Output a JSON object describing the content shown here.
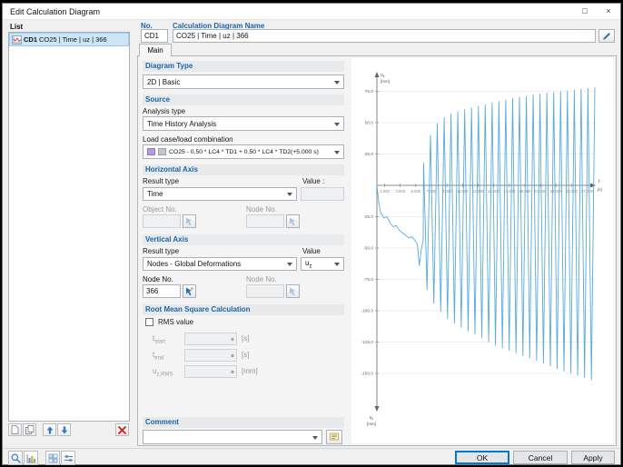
{
  "colors": {
    "accent": "#0078d7",
    "section_header": "#1a66a8",
    "chart_line": "#58a9dc",
    "selection": "#cde6f7",
    "delete": "#d01c1c"
  },
  "window": {
    "title": "Edit Calculation Diagram",
    "maximize_glyph": "□",
    "close_glyph": "×"
  },
  "list_panel": {
    "label": "List",
    "items": [
      {
        "no": "CD1",
        "name": "CO25 | Time | uz | 366"
      }
    ]
  },
  "header": {
    "no_label": "No.",
    "no_value": "CD1",
    "name_label": "Calculation Diagram Name",
    "name_value": "CO25 | Time | uz | 366"
  },
  "tabs": [
    {
      "label": "Main"
    }
  ],
  "sections": {
    "diagram_type": {
      "title": "Diagram Type",
      "value": "2D | Basic"
    },
    "source": {
      "title": "Source",
      "analysis_type_label": "Analysis type",
      "analysis_type_value": "Time History Analysis",
      "load_case_label": "Load case/load combination",
      "load_case_value": "CO25 - 0.50 * LC4 * TD1 + 0.50 * LC4 * TD2(+5.000 s)"
    },
    "horizontal_axis": {
      "title": "Horizontal Axis",
      "result_type_label": "Result type",
      "result_type_value": "Time",
      "value_label": "Value :",
      "value_value": "",
      "object_no_label": "Object No.",
      "object_no_value": "",
      "node_no_label": "Node No.",
      "node_no_value": ""
    },
    "vertical_axis": {
      "title": "Vertical Axis",
      "result_type_label": "Result type",
      "result_type_value": "Nodes - Global Deformations",
      "value_label": "Value",
      "value_base": "u",
      "value_sub": "z",
      "node_no_label": "Node No.",
      "node_no_value": "366",
      "node_no2_label": "Node No.",
      "node_no2_value": ""
    },
    "rms": {
      "title": "Root Mean Square Calculation",
      "checkbox_label": "RMS value",
      "checked": false,
      "rows": [
        {
          "base": "t",
          "sub": "start",
          "value": "",
          "unit": "[s]"
        },
        {
          "base": "t",
          "sub": "end",
          "value": "",
          "unit": "[s]"
        },
        {
          "base": "u",
          "sub": "z,RMS",
          "value": "",
          "unit": "[mm]"
        }
      ]
    },
    "comment": {
      "title": "Comment",
      "value": ""
    }
  },
  "footer": {
    "ok": "OK",
    "cancel": "Cancel",
    "apply": "Apply"
  },
  "chart_data": {
    "type": "line",
    "xlabel": "t",
    "xunit": "[s]",
    "ylabel_base": "u",
    "ylabel_sub": "z",
    "yunit": "[mm]",
    "xlim": [
      0,
      28
    ],
    "ylim": [
      -160,
      85
    ],
    "grid": "horizontal",
    "x_ticks": {
      "values": [
        1,
        3,
        5,
        7,
        9,
        11,
        13,
        15,
        17,
        19,
        21,
        23,
        25,
        27
      ],
      "labels": [
        "1.000",
        "3.000",
        "5.000",
        "7.000",
        "9.000",
        "11.000",
        "13.000",
        "15.000",
        "17.000",
        "19.000",
        "21.000",
        "23.000",
        "25.000",
        "27.000"
      ]
    },
    "y_ticks": {
      "values": [
        75,
        50,
        25,
        -25,
        -50,
        -75,
        -100,
        -125,
        -150
      ],
      "labels": [
        "75.0",
        "50.0",
        "25.0",
        "-25.0",
        "-50.0",
        "-75.0",
        "-100.0",
        "-125.0",
        "-150.0"
      ]
    },
    "series": [
      {
        "initial_points": [
          [
            0,
            0
          ],
          [
            0.25,
            -14
          ],
          [
            0.5,
            -22
          ],
          [
            0.9,
            -26
          ],
          [
            1.3,
            -25
          ],
          [
            1.7,
            -30
          ],
          [
            2.1,
            -33
          ],
          [
            2.5,
            -32
          ],
          [
            2.9,
            -36
          ],
          [
            3.3,
            -38
          ],
          [
            3.7,
            -40
          ],
          [
            4.1,
            -42
          ],
          [
            4.5,
            -41
          ],
          [
            4.9,
            -44
          ],
          [
            5.2,
            -47
          ],
          [
            5.45,
            -64
          ],
          [
            5.7,
            -51
          ],
          [
            5.95,
            -44
          ]
        ],
        "oscillation": {
          "t_start": 6.0,
          "t_end": 28.0,
          "half_period_s": 0.44,
          "top_envelope": [
            [
              6,
              18
            ],
            [
              6.5,
              35
            ],
            [
              7.5,
              48
            ],
            [
              9,
              56
            ],
            [
              11,
              60
            ],
            [
              13,
              63
            ],
            [
              15,
              66
            ],
            [
              18,
              70
            ],
            [
              21,
              73
            ],
            [
              24,
              75
            ],
            [
              28,
              78
            ]
          ],
          "bottom_envelope": [
            [
              6,
              -70
            ],
            [
              6.5,
              -85
            ],
            [
              7.5,
              -96
            ],
            [
              9,
              -106
            ],
            [
              11,
              -114
            ],
            [
              13,
              -120
            ],
            [
              15,
              -127
            ],
            [
              18,
              -134
            ],
            [
              21,
              -141
            ],
            [
              24,
              -148
            ],
            [
              28,
              -156
            ]
          ]
        }
      }
    ]
  }
}
